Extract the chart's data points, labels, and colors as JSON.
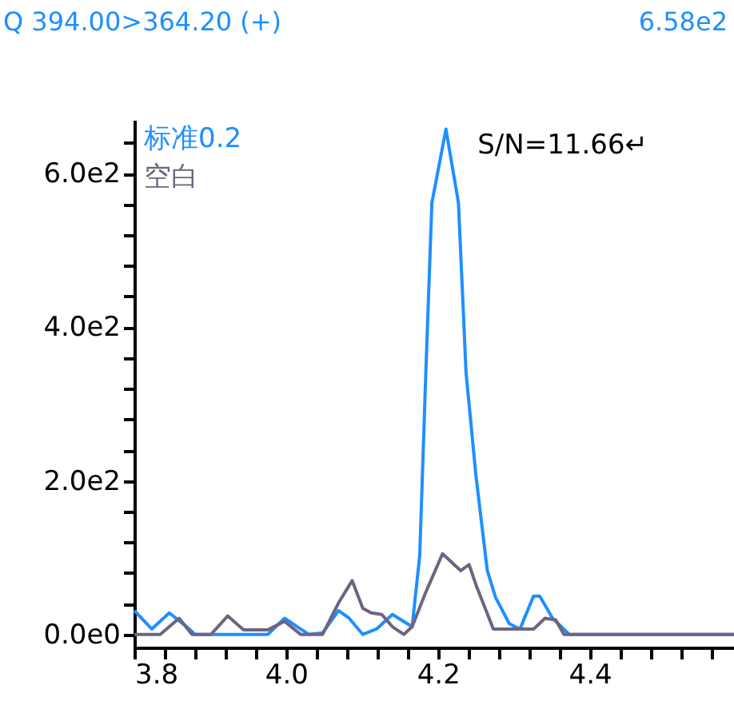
{
  "chart_data": {
    "type": "line",
    "title": "Q 394.00>364.20 (+)",
    "annotations": [
      "6.58e2",
      {
        "text": "S/N=11.66↵",
        "x": 4.21,
        "y": 658
      }
    ],
    "xlim": [
      3.8,
      4.59
    ],
    "ylim": [
      -17,
      670
    ],
    "xticks": [
      3.8,
      {
        "value": 3.84,
        "label": null
      },
      {
        "value": 3.88,
        "label": null
      },
      {
        "value": 3.92,
        "label": null
      },
      {
        "value": 3.96,
        "label": null
      },
      {
        "value": 4.0,
        "label": "4.0"
      },
      {
        "value": 4.04,
        "label": null
      },
      {
        "value": 4.08,
        "label": null
      },
      {
        "value": 4.12,
        "label": null
      },
      {
        "value": 4.16,
        "label": null
      },
      4.2,
      {
        "value": 4.24,
        "label": null
      },
      {
        "value": 4.28,
        "label": null
      },
      {
        "value": 4.32,
        "label": null
      },
      {
        "value": 4.36,
        "label": null
      },
      4.4,
      {
        "value": 4.44,
        "label": null
      },
      {
        "value": 4.48,
        "label": null
      },
      {
        "value": 4.52,
        "label": null
      },
      {
        "value": 4.56,
        "label": null
      }
    ],
    "yticks": [
      {
        "value": 0,
        "label": "0.0e0"
      },
      {
        "value": 40,
        "label": null
      },
      {
        "value": 80,
        "label": null
      },
      {
        "value": 120,
        "label": null
      },
      {
        "value": 160,
        "label": null
      },
      {
        "value": 200,
        "label": "2.0e2"
      },
      {
        "value": 240,
        "label": null
      },
      {
        "value": 280,
        "label": null
      },
      {
        "value": 320,
        "label": null
      },
      {
        "value": 360,
        "label": null
      },
      {
        "value": 400,
        "label": "4.0e2"
      },
      {
        "value": 440,
        "label": null
      },
      {
        "value": 480,
        "label": null
      },
      {
        "value": 520,
        "label": null
      },
      {
        "value": 560,
        "label": null
      },
      {
        "value": 600,
        "label": "6.0e2"
      },
      {
        "value": 640,
        "label": null
      }
    ],
    "grid": false,
    "legend": "top left",
    "marker": "none",
    "line_style": "solid",
    "series": [
      {
        "name": "标准0.2",
        "color": "#1e8fff",
        "x": [
          3.8,
          3.823,
          3.846,
          3.869,
          3.88,
          3.976,
          3.998,
          4.019,
          4.03,
          4.048,
          4.069,
          4.083,
          4.101,
          4.119,
          4.14,
          4.166,
          4.176,
          4.184,
          4.192,
          4.2105,
          4.227,
          4.237,
          4.25,
          4.265,
          4.276,
          4.294,
          4.308,
          4.326,
          4.334,
          4.351,
          4.373,
          4.59
        ],
        "values": [
          31,
          7,
          28,
          10,
          0,
          0,
          21,
          7,
          0,
          2,
          31,
          21,
          0,
          7,
          26,
          10,
          103,
          341,
          562,
          658,
          562,
          341,
          207,
          83,
          48,
          14,
          7,
          50,
          50,
          21,
          0,
          0
        ]
      },
      {
        "name": "空白",
        "color": "#6e6480",
        "x": [
          3.8,
          3.834,
          3.859,
          3.876,
          3.901,
          3.923,
          3.944,
          3.976,
          3.998,
          4.019,
          4.048,
          4.069,
          4.087,
          4.101,
          4.112,
          4.126,
          4.14,
          4.155,
          4.166,
          4.184,
          4.206,
          4.219,
          4.23,
          4.241,
          4.251,
          4.273,
          4.294,
          4.326,
          4.341,
          4.355,
          4.366,
          4.59
        ],
        "values": [
          0,
          0,
          21,
          0,
          0,
          24,
          6,
          6,
          17,
          0,
          0,
          41,
          70,
          34,
          28,
          26,
          10,
          0,
          10,
          55,
          105,
          93,
          83,
          91,
          62,
          7,
          7,
          7,
          21,
          19,
          0,
          0
        ]
      }
    ]
  }
}
